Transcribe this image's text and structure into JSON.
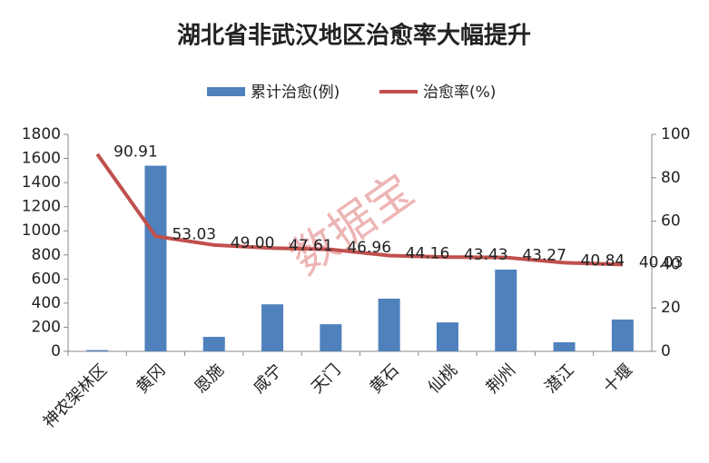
{
  "chart_data": {
    "type": "bar-line",
    "title": "湖北省非武汉地区治愈率大幅提升",
    "watermark": "数据宝",
    "categories": [
      "神农架林区",
      "黄冈",
      "恩施",
      "咸宁",
      "天门",
      "黄石",
      "仙桃",
      "荆州",
      "潜江",
      "十堰"
    ],
    "series": [
      {
        "name": "累计治愈(例)",
        "type": "bar",
        "color": "#4f81bd",
        "values": [
          10,
          1540,
          120,
          390,
          225,
          437,
          240,
          678,
          75,
          264
        ]
      },
      {
        "name": "治愈率(%)",
        "type": "line",
        "axis": "y2",
        "color": "#c0504d",
        "values": [
          90.91,
          53.03,
          49,
          47.61,
          46.96,
          44.16,
          43.43,
          43.27,
          40.84,
          40.03
        ],
        "value_labels": [
          "90.91",
          "53.03",
          "49.00",
          "47.61",
          "46.96",
          "44.16",
          "43.43",
          "43.27",
          "40.84",
          "40.03"
        ]
      }
    ],
    "ylim": [
      0,
      1800
    ],
    "yticks": [
      0,
      200,
      400,
      600,
      800,
      1000,
      1200,
      1400,
      1600,
      1800
    ],
    "y2lim": [
      0,
      100
    ],
    "y2ticks": [
      0,
      20,
      40,
      60,
      80,
      100
    ],
    "legend": "top"
  }
}
